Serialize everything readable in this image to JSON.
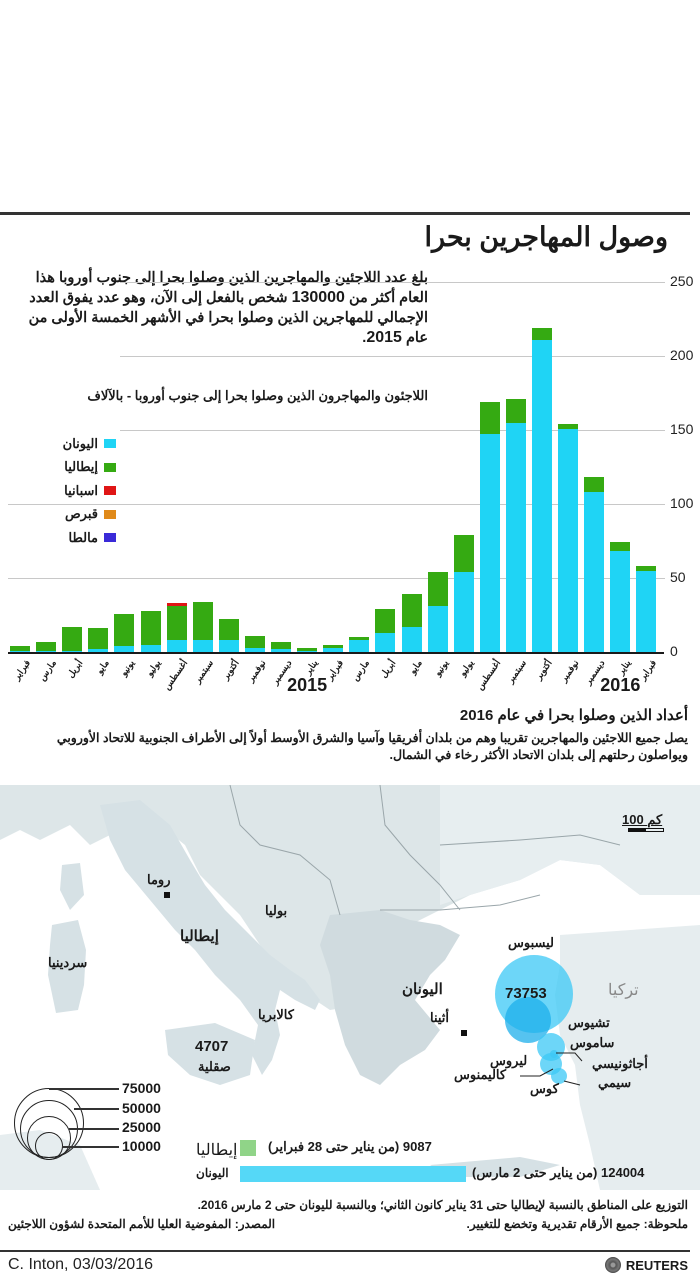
{
  "header": {
    "title": "وصول المهاجرين بحرا",
    "intro_parts": [
      "بلغ عدد اللاجئين والمهاجرين الذين وصلوا بحرا إلى جنوب أوروبا هذا العام أكثر من ",
      "130000",
      " شخص بالفعل إلى الآن، وهو عدد يفوق العدد الإجمالي للمهاجرين الذين وصلوا بحرا في الأشهر الخمسة الأولى من عام ",
      "2015",
      "."
    ]
  },
  "chart": {
    "subtitle": "اللاجئون والمهاجرون الذين وصلوا بحرا إلى جنوب أوروبا - بالآلاف",
    "legend": [
      {
        "label": "اليونان",
        "color": "#1fd4f5"
      },
      {
        "label": "إيطاليا",
        "color": "#35aa12"
      },
      {
        "label": "اسبانيا",
        "color": "#e01515"
      },
      {
        "label": "قبرص",
        "color": "#e08a1a"
      },
      {
        "label": "مالطا",
        "color": "#3a2ad8"
      }
    ],
    "yticks": [
      "0",
      "50",
      "100",
      "150",
      "200",
      "250"
    ],
    "year_labels": [
      "2015",
      "2016"
    ]
  },
  "chart_data": {
    "type": "bar",
    "stacked": true,
    "title": "وصول المهاجرين بحرا",
    "subtitle": "اللاجئون والمهاجرون الذين وصلوا بحرا إلى جنوب أوروبا - بالآلاف",
    "xlabel": "",
    "ylabel": "بالآلاف",
    "ylim": [
      0,
      250
    ],
    "yticks": [
      0,
      50,
      100,
      150,
      200,
      250
    ],
    "grid": true,
    "legend_position": "left",
    "categories": [
      "فبراير",
      "مارس",
      "أبريل",
      "مايو",
      "يونيو",
      "يوليو",
      "أغسطس",
      "سبتمبر",
      "أكتوبر",
      "نوفمبر",
      "ديسمبر",
      "يناير",
      "فبراير",
      "مارس",
      "أبريل",
      "مايو",
      "يونيو",
      "يوليو",
      "أغسطس",
      "سبتمبر",
      "أكتوبر",
      "نوفمبر",
      "ديسمبر",
      "يناير",
      "فبراير"
    ],
    "year_labels": [
      {
        "label": "2015",
        "under_index": 11
      },
      {
        "label": "2016",
        "under_index": 23
      }
    ],
    "series": [
      {
        "name": "اليونان",
        "color": "#1fd4f5",
        "values": [
          0.5,
          1,
          1,
          2,
          4,
          5,
          8,
          8,
          8,
          3,
          2,
          1,
          3,
          8,
          13,
          17,
          31,
          54,
          147,
          155,
          211,
          151,
          108,
          68,
          55
        ]
      },
      {
        "name": "إيطاليا",
        "color": "#35aa12",
        "values": [
          3.5,
          6,
          16,
          14,
          22,
          23,
          23,
          26,
          14,
          8,
          5,
          2,
          2,
          2,
          16,
          22,
          23,
          25,
          22,
          16,
          8,
          3,
          10,
          6,
          3
        ]
      },
      {
        "name": "اسبانيا",
        "color": "#e01515",
        "values": [
          0,
          0,
          0,
          0,
          0,
          0,
          2,
          0,
          0.5,
          0,
          0,
          0,
          0,
          0,
          0,
          0,
          0,
          0,
          0,
          0,
          0,
          0,
          0,
          0,
          0
        ]
      },
      {
        "name": "قبرص",
        "color": "#e08a1a",
        "values": [
          0,
          0,
          0,
          0,
          0,
          0,
          0,
          0,
          0,
          0,
          0,
          0,
          0,
          0,
          0,
          0,
          0,
          0,
          0,
          0,
          0,
          0,
          0,
          0,
          0
        ]
      },
      {
        "name": "مالطا",
        "color": "#3a2ad8",
        "values": [
          0,
          0,
          0,
          0,
          0,
          0,
          0,
          0,
          0,
          0,
          0,
          0,
          0,
          0,
          0,
          0,
          0,
          0,
          0,
          0,
          0,
          0,
          0,
          0,
          0
        ]
      }
    ]
  },
  "map_section": {
    "heading": "أعداد الذين وصلوا بحرا في عام 2016",
    "description": "يصل جميع اللاجئين والمهاجرين تقريبا وهم من بلدان أفريقيا وآسيا والشرق الأوسط أولاً إلى الأطراف الجنوبية للاتحاد الأوروبي ويواصلون رحلتهم إلى بلدان الاتحاد الأكثر رخاء في الشمال.",
    "scale_bar": "100 كم",
    "labels": {
      "rome": "روما",
      "puglia": "بوليا",
      "italy": "إيطاليا",
      "sardinia": "سردينيا",
      "calabria": "كالابريا",
      "sicily": "صقلية",
      "sicily_value": "4707",
      "greece": "اليونان",
      "athens": "أثينا",
      "turkey": "تركيا",
      "lesbos": "ليسبوس",
      "lesbos_value": "73753",
      "chios": "تشيوس",
      "samos": "ساموس",
      "agathonisi": "أجاثونيسي",
      "leros": "ليروس",
      "kalymnos": "كاليمنوس",
      "kos": "كوس",
      "symi": "سيمي"
    },
    "size_legend": [
      "75000",
      "50000",
      "25000",
      "10000"
    ],
    "totals": [
      {
        "country": "إيطاليا",
        "value": "9087",
        "period": "(من يناير حتى 28 فبراير)",
        "color": "#90d488"
      },
      {
        "country": "اليونان",
        "value": "124004",
        "period": "(من يناير حتى 2 مارس)",
        "color": "#55d8f7"
      }
    ]
  },
  "footer": {
    "note_line1": "التوزيع على المناطق بالنسبة لإيطاليا حتى 31 يناير كانون الثاني؛ وبالنسبة لليونان حتى 2 مارس 2016.",
    "note_line2": "ملحوظة: جميع الأرقام تقديرية وتخضع للتغيير.",
    "source": "المصدر: المفوضية العليا للأمم المتحدة لشؤون اللاجئين",
    "credit": "C. Inton, 03/03/2016",
    "brand": "REUTERS"
  }
}
